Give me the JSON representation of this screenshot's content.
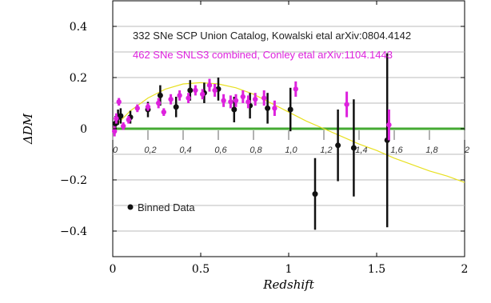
{
  "chart_data": {
    "type": "scatter",
    "title": "",
    "xlabel": "Redshift",
    "ylabel": "ΔDM",
    "xlim": [
      0,
      2
    ],
    "ylim": [
      -0.5,
      0.5
    ],
    "x_ticks": [
      "0",
      "0.5",
      "1",
      "1.5",
      "2"
    ],
    "y_ticks": [
      "0.4",
      "0.2",
      "0",
      "−0.2",
      "−0.4"
    ],
    "x_tick_values": [
      0,
      0.5,
      1,
      1.5,
      2
    ],
    "y_tick_values": [
      0.4,
      0.2,
      0,
      -0.2,
      -0.4
    ],
    "inner_x_ticks": [
      "0",
      "0,2",
      "0,4",
      "0,6",
      "0,8",
      "1,0",
      "1,2",
      "1,4",
      "1,6",
      "1,8",
      "2"
    ],
    "inner_x_tick_values": [
      0,
      0.2,
      0.4,
      0.6,
      0.8,
      1.0,
      1.2,
      1.4,
      1.6,
      1.8,
      2.0
    ],
    "legend": [
      {
        "text": "332 SNe SCP Union Catalog, Kowalski etal arXiv:0804.4142",
        "color": "#222222"
      },
      {
        "text": "462 SNe SNLS3 combined, Conley etal arXiv:1104.1443",
        "color": "#dd22dd"
      }
    ],
    "binned_label": "Binned Data",
    "colors": {
      "union": "#111111",
      "snls": "#dd22dd",
      "model_curve": "#e8e020",
      "zero_line": "#44aa33",
      "grid": "#bbbbbb"
    },
    "series": [
      {
        "name": "332 SNe SCP Union Catalog, Kowalski etal arXiv:0804.4142",
        "marker": "circle",
        "x": [
          0.015,
          0.03,
          0.045,
          0.1,
          0.2,
          0.27,
          0.36,
          0.44,
          0.52,
          0.6,
          0.69,
          0.78,
          0.88,
          1.01,
          1.15,
          1.28,
          1.37,
          1.56
        ],
        "y": [
          0.02,
          0.045,
          0.05,
          0.045,
          0.075,
          0.13,
          0.085,
          0.15,
          0.14,
          0.155,
          0.075,
          0.09,
          0.08,
          0.075,
          -0.255,
          -0.065,
          -0.075,
          -0.045
        ],
        "err": [
          0.03,
          0.03,
          0.03,
          0.025,
          0.03,
          0.04,
          0.04,
          0.04,
          0.04,
          0.045,
          0.05,
          0.05,
          0.06,
          0.085,
          0.14,
          0.14,
          0.19,
          0.34
        ]
      },
      {
        "name": "462 SNe SNLS3 combined, Conley etal arXiv:1104.1443",
        "marker": "circle",
        "x": [
          0.01,
          0.02,
          0.035,
          0.06,
          0.09,
          0.14,
          0.2,
          0.26,
          0.29,
          0.33,
          0.38,
          0.43,
          0.47,
          0.51,
          0.55,
          0.58,
          0.63,
          0.67,
          0.7,
          0.74,
          0.77,
          0.81,
          0.86,
          0.92,
          1.04,
          1.33,
          1.57
        ],
        "y": [
          -0.01,
          0.04,
          0.105,
          0.01,
          0.035,
          0.08,
          0.085,
          0.1,
          0.065,
          0.115,
          0.13,
          0.12,
          0.15,
          0.135,
          0.17,
          0.15,
          0.11,
          0.105,
          0.11,
          0.125,
          0.105,
          0.115,
          0.12,
          0.08,
          0.155,
          0.095,
          0.015
        ],
        "err": [
          0.02,
          0.02,
          0.015,
          0.015,
          0.015,
          0.015,
          0.015,
          0.02,
          0.015,
          0.02,
          0.02,
          0.02,
          0.02,
          0.02,
          0.025,
          0.025,
          0.025,
          0.025,
          0.025,
          0.025,
          0.025,
          0.025,
          0.03,
          0.03,
          0.03,
          0.05,
          0.06
        ]
      }
    ],
    "model_curve": {
      "x": [
        0,
        0.1,
        0.2,
        0.3,
        0.4,
        0.5,
        0.6,
        0.7,
        0.8,
        0.9,
        1.0,
        1.1,
        1.2,
        1.3,
        1.4,
        1.5,
        1.6,
        1.7,
        1.8,
        1.9,
        2.0
      ],
      "y": [
        0.0,
        0.07,
        0.12,
        0.155,
        0.175,
        0.18,
        0.175,
        0.16,
        0.135,
        0.1,
        0.065,
        0.03,
        0.0,
        -0.03,
        -0.06,
        -0.085,
        -0.115,
        -0.14,
        -0.165,
        -0.185,
        -0.21
      ]
    }
  }
}
